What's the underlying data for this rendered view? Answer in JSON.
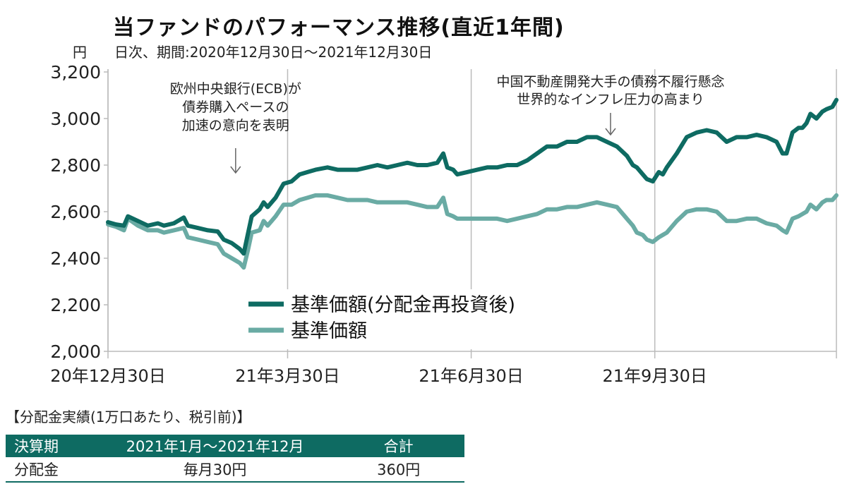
{
  "title": "当ファンドのパフォーマンス推移(直近1年間)",
  "subtitle": "日次、期間:2020年12月30日〜2021年12月30日",
  "y_unit": "円",
  "colors": {
    "reinvest": "#0e6b62",
    "base": "#6aaba4",
    "axis": "#bbbbbb"
  },
  "chart_data": {
    "type": "line",
    "title": "当ファンドのパフォーマンス推移(直近1年間)",
    "ylabel": "円",
    "ylim": [
      2000,
      3200
    ],
    "yticks": [
      2000,
      2200,
      2400,
      2600,
      2800,
      3000,
      3200
    ],
    "ytick_labels": [
      "2,000",
      "2,200",
      "2,400",
      "2,600",
      "2,800",
      "3,000",
      "3,200"
    ],
    "x_range_days": [
      0,
      365
    ],
    "xticks": [
      {
        "day": 0,
        "label": "20年12月30日"
      },
      {
        "day": 90,
        "label": "21年3月30日"
      },
      {
        "day": 182,
        "label": "21年6月30日"
      },
      {
        "day": 274,
        "label": "21年9月30日"
      }
    ],
    "series": [
      {
        "name": "基準価額(分配金再投資後)",
        "color": "#0e6b62",
        "x": [
          0,
          4,
          8,
          10,
          15,
          20,
          25,
          28,
          33,
          38,
          40,
          45,
          50,
          55,
          58,
          62,
          66,
          68,
          70,
          72,
          76,
          78,
          80,
          84,
          88,
          92,
          96,
          100,
          104,
          110,
          115,
          120,
          125,
          130,
          135,
          140,
          145,
          150,
          155,
          160,
          165,
          168,
          170,
          173,
          175,
          180,
          185,
          190,
          195,
          200,
          205,
          210,
          215,
          220,
          225,
          230,
          235,
          240,
          245,
          250,
          255,
          260,
          263,
          265,
          268,
          270,
          273,
          276,
          278,
          280,
          285,
          290,
          295,
          300,
          305,
          310,
          315,
          320,
          325,
          330,
          335,
          338,
          340,
          343,
          346,
          348,
          350,
          352,
          355,
          358,
          360,
          363,
          365
        ],
        "values": [
          2555,
          2545,
          2540,
          2580,
          2560,
          2540,
          2550,
          2540,
          2550,
          2575,
          2540,
          2530,
          2520,
          2515,
          2480,
          2465,
          2440,
          2420,
          2500,
          2580,
          2610,
          2640,
          2620,
          2660,
          2720,
          2730,
          2760,
          2770,
          2780,
          2790,
          2780,
          2780,
          2780,
          2790,
          2800,
          2790,
          2800,
          2810,
          2800,
          2800,
          2810,
          2850,
          2790,
          2780,
          2760,
          2770,
          2780,
          2790,
          2790,
          2800,
          2800,
          2820,
          2850,
          2880,
          2880,
          2900,
          2900,
          2920,
          2920,
          2900,
          2880,
          2840,
          2800,
          2790,
          2760,
          2740,
          2730,
          2770,
          2760,
          2790,
          2850,
          2920,
          2940,
          2950,
          2940,
          2900,
          2920,
          2920,
          2930,
          2920,
          2900,
          2850,
          2850,
          2940,
          2960,
          2960,
          2980,
          3020,
          3000,
          3030,
          3040,
          3050,
          3080
        ]
      },
      {
        "name": "基準価額",
        "color": "#6aaba4",
        "x": [
          0,
          4,
          8,
          10,
          15,
          20,
          25,
          28,
          33,
          38,
          40,
          45,
          50,
          55,
          58,
          62,
          66,
          68,
          70,
          72,
          76,
          78,
          80,
          84,
          88,
          92,
          96,
          100,
          104,
          110,
          115,
          120,
          125,
          130,
          135,
          140,
          145,
          150,
          155,
          160,
          165,
          168,
          170,
          173,
          175,
          180,
          185,
          190,
          195,
          200,
          205,
          210,
          215,
          220,
          225,
          230,
          235,
          240,
          245,
          250,
          255,
          260,
          263,
          265,
          268,
          270,
          273,
          276,
          278,
          280,
          285,
          290,
          295,
          300,
          305,
          310,
          315,
          320,
          325,
          330,
          335,
          338,
          340,
          343,
          346,
          348,
          350,
          352,
          355,
          358,
          360,
          363,
          365
        ],
        "values": [
          2545,
          2535,
          2520,
          2570,
          2540,
          2520,
          2520,
          2510,
          2520,
          2530,
          2490,
          2480,
          2470,
          2460,
          2420,
          2400,
          2380,
          2360,
          2430,
          2510,
          2520,
          2560,
          2540,
          2580,
          2630,
          2630,
          2650,
          2660,
          2670,
          2670,
          2660,
          2650,
          2650,
          2650,
          2640,
          2640,
          2640,
          2640,
          2630,
          2620,
          2620,
          2660,
          2590,
          2580,
          2570,
          2570,
          2570,
          2570,
          2570,
          2560,
          2570,
          2580,
          2590,
          2610,
          2610,
          2620,
          2620,
          2630,
          2640,
          2630,
          2620,
          2570,
          2540,
          2510,
          2500,
          2480,
          2470,
          2490,
          2500,
          2510,
          2560,
          2600,
          2610,
          2610,
          2600,
          2560,
          2560,
          2570,
          2570,
          2550,
          2540,
          2520,
          2510,
          2570,
          2580,
          2590,
          2600,
          2630,
          2610,
          2640,
          2650,
          2650,
          2670
        ]
      }
    ],
    "legend": [
      "基準価額(分配金再投資後)",
      "基準価額"
    ],
    "annotations": [
      {
        "day": 59,
        "lines": [
          "欧州中央銀行(ECB)が",
          "債券購入ペースの",
          "加速の意向を表明"
        ]
      },
      {
        "day": 255,
        "lines": [
          "中国不動産開発大手の債務不履行懸念",
          "世界的なインフレ圧力の高まり"
        ]
      }
    ]
  },
  "table": {
    "title": "【分配金実績(1万口あたり、税引前)】",
    "headers": [
      "決算期",
      "2021年1月〜2021年12月",
      "合計"
    ],
    "row": [
      "分配金",
      "毎月30円",
      "360円"
    ]
  }
}
